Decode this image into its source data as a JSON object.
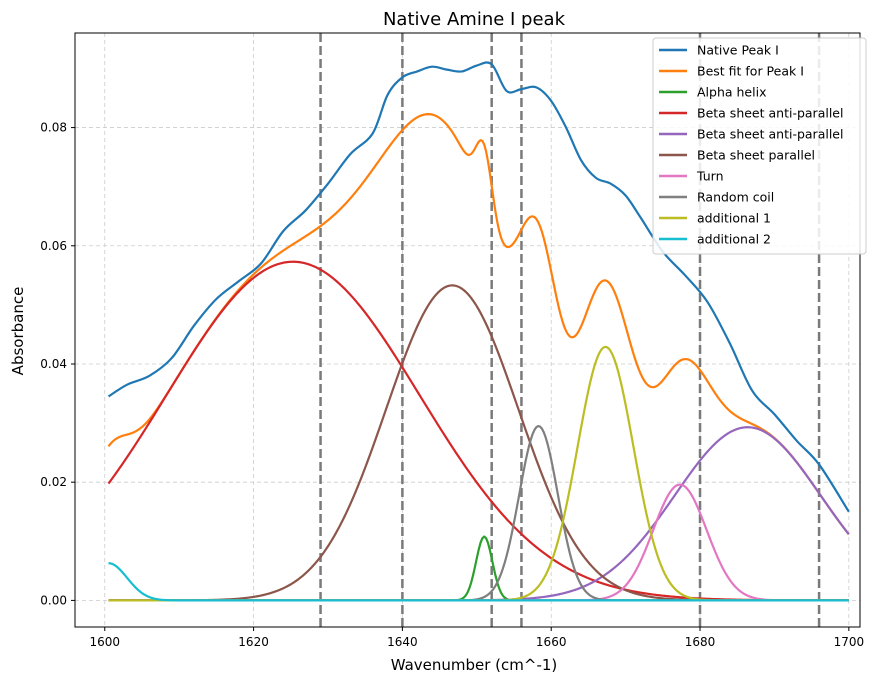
{
  "chart_data": {
    "type": "line",
    "title": "Native Amine I peak",
    "xlabel": "Wavenumber (cm^-1)",
    "ylabel": "Absorbance",
    "xlim": [
      1596,
      1701.5
    ],
    "ylim": [
      -0.0045,
      0.096
    ],
    "xticks": [
      1600,
      1620,
      1640,
      1660,
      1680,
      1700
    ],
    "yticks": [
      0.0,
      0.02,
      0.04,
      0.06,
      0.08
    ],
    "xtick_labels": [
      "1600",
      "1620",
      "1640",
      "1660",
      "1680",
      "1700"
    ],
    "ytick_labels": [
      "0.00",
      "0.02",
      "0.04",
      "0.06",
      "0.08"
    ],
    "grid": true,
    "legend_position": "top-right",
    "vlines": [
      1629,
      1640,
      1652,
      1656,
      1680,
      1696
    ],
    "vline_color": "#7a7a7a",
    "series": [
      {
        "name": "Native Peak I",
        "color": "#1f77b4",
        "kind": "points",
        "x": [
          1600.5,
          1603,
          1606,
          1609,
          1612,
          1615,
          1618,
          1621,
          1624,
          1627,
          1630,
          1633,
          1636,
          1638,
          1640,
          1642,
          1644,
          1646,
          1648,
          1650,
          1652,
          1654,
          1656,
          1658,
          1660,
          1662,
          1664,
          1666,
          1668,
          1670,
          1672,
          1675,
          1678,
          1681,
          1684,
          1687,
          1690,
          1693,
          1696,
          1700
        ],
        "y": [
          0.0345,
          0.0365,
          0.038,
          0.041,
          0.0465,
          0.051,
          0.054,
          0.057,
          0.0625,
          0.066,
          0.0705,
          0.0755,
          0.079,
          0.0855,
          0.0885,
          0.0895,
          0.0903,
          0.0898,
          0.0895,
          0.0905,
          0.0907,
          0.0862,
          0.0865,
          0.0868,
          0.0845,
          0.08,
          0.0745,
          0.0715,
          0.0705,
          0.0685,
          0.0648,
          0.059,
          0.055,
          0.0505,
          0.0435,
          0.0355,
          0.0315,
          0.027,
          0.023,
          0.015
        ]
      },
      {
        "name": "Best fit for Peak I",
        "color": "#ff7f0e",
        "kind": "sum",
        "components": [
          "Alpha helix",
          "Beta sheet anti-parallel",
          "Beta sheet anti-parallel (2)",
          "Beta sheet parallel",
          "Turn",
          "Random coil",
          "additional 1",
          "additional 2"
        ]
      },
      {
        "name": "Alpha helix",
        "color": "#2ca02c",
        "kind": "gaussian",
        "amplitude": 0.0108,
        "center": 1651,
        "sigma": 1.1
      },
      {
        "name": "Beta sheet anti-parallel",
        "color": "#d62728",
        "kind": "gaussian",
        "amplitude": 0.0573,
        "center": 1625.3,
        "sigma": 17.0
      },
      {
        "name": "Beta sheet anti-parallel",
        "color": "#9467bd",
        "kind": "gaussian",
        "amplitude": 0.0293,
        "center": 1686.4,
        "sigma": 9.8
      },
      {
        "name": "Beta sheet parallel",
        "color": "#8c564b",
        "kind": "gaussian",
        "amplitude": 0.0533,
        "center": 1646.7,
        "sigma": 8.9
      },
      {
        "name": "Turn",
        "color": "#e377c2",
        "kind": "gaussian",
        "amplitude": 0.0196,
        "center": 1677.3,
        "sigma": 3.6
      },
      {
        "name": "Random coil",
        "color": "#7f7f7f",
        "kind": "gaussian",
        "amplitude": 0.0295,
        "center": 1658.3,
        "sigma": 2.6
      },
      {
        "name": "additional 1",
        "color": "#bcbd22",
        "kind": "gaussian",
        "amplitude": 0.0429,
        "center": 1667.3,
        "sigma": 3.75
      },
      {
        "name": "additional 2",
        "color": "#17becf",
        "kind": "gaussian",
        "amplitude": 0.0063,
        "center": 1600.5,
        "sigma": 2.5
      }
    ]
  }
}
